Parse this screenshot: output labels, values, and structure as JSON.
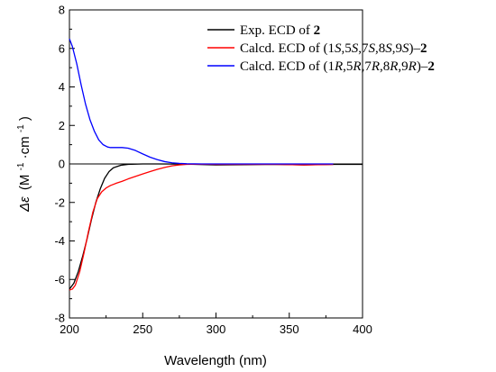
{
  "chart_data": {
    "type": "line",
    "xlabel": "Wavelength (nm)",
    "ylabel": {
      "symbol": "Δε",
      "units_open": "(M",
      "exp1": "-1",
      "dot": "·cm",
      "exp2": "-1",
      "units_close": ")"
    },
    "xlim": [
      200,
      400
    ],
    "ylim": [
      -8,
      8
    ],
    "x_ticks": [
      200,
      250,
      300,
      350,
      400
    ],
    "y_ticks": [
      -8,
      -6,
      -4,
      -2,
      0,
      2,
      4,
      6,
      8
    ],
    "zero_line": true,
    "grid": false,
    "legend_position": "top-right",
    "series": [
      {
        "color": "#000000",
        "legend": [
          {
            "t": "Exp. ECD of ",
            "s": "normal"
          },
          {
            "t": "2",
            "s": "bold"
          }
        ],
        "x": [
          200,
          203,
          206,
          209,
          212,
          215,
          218,
          221,
          224,
          227,
          230,
          235,
          240,
          250,
          260,
          280,
          300,
          320,
          340,
          360,
          380,
          400
        ],
        "y": [
          -6.5,
          -6.2,
          -5.6,
          -4.8,
          -3.9,
          -2.9,
          -2.0,
          -1.3,
          -0.75,
          -0.4,
          -0.2,
          -0.07,
          -0.02,
          0.0,
          0.0,
          -0.01,
          -0.05,
          -0.04,
          -0.02,
          -0.05,
          -0.02,
          -0.02
        ]
      },
      {
        "color": "#ff0000",
        "legend": [
          {
            "t": "Calcd. ECD of (1",
            "s": "normal"
          },
          {
            "t": "S",
            "s": "italic"
          },
          {
            "t": ",5",
            "s": "normal"
          },
          {
            "t": "S",
            "s": "italic"
          },
          {
            "t": ",7",
            "s": "normal"
          },
          {
            "t": "S",
            "s": "italic"
          },
          {
            "t": ",8",
            "s": "normal"
          },
          {
            "t": "S",
            "s": "italic"
          },
          {
            "t": ",9",
            "s": "normal"
          },
          {
            "t": "S",
            "s": "italic"
          },
          {
            "t": ")–",
            "s": "normal"
          },
          {
            "t": "2",
            "s": "bold"
          }
        ],
        "x": [
          200,
          202,
          204,
          207,
          210,
          213,
          216,
          219,
          222,
          225,
          228,
          232,
          236,
          240,
          245,
          250,
          255,
          260,
          265,
          270,
          275,
          280,
          290,
          300,
          320,
          340,
          360,
          380
        ],
        "y": [
          -6.55,
          -6.5,
          -6.3,
          -5.6,
          -4.6,
          -3.5,
          -2.5,
          -1.8,
          -1.45,
          -1.25,
          -1.12,
          -1.0,
          -0.9,
          -0.78,
          -0.65,
          -0.52,
          -0.4,
          -0.28,
          -0.18,
          -0.1,
          -0.05,
          -0.02,
          -0.01,
          -0.02,
          -0.02,
          -0.02,
          -0.05,
          -0.03
        ]
      },
      {
        "color": "#0000ff",
        "legend": [
          {
            "t": "Calcd. ECD of (1",
            "s": "normal"
          },
          {
            "t": "R",
            "s": "italic"
          },
          {
            "t": ",5",
            "s": "normal"
          },
          {
            "t": "R",
            "s": "italic"
          },
          {
            "t": ",7",
            "s": "normal"
          },
          {
            "t": "R",
            "s": "italic"
          },
          {
            "t": ",8",
            "s": "normal"
          },
          {
            "t": "R",
            "s": "italic"
          },
          {
            "t": ",9",
            "s": "normal"
          },
          {
            "t": "R",
            "s": "italic"
          },
          {
            "t": ")–",
            "s": "normal"
          },
          {
            "t": "2",
            "s": "bold"
          }
        ],
        "x": [
          200,
          202,
          205,
          208,
          211,
          214,
          217,
          220,
          223,
          226,
          228,
          232,
          236,
          240,
          245,
          250,
          255,
          260,
          265,
          270,
          275,
          280,
          290,
          300,
          320,
          340,
          360,
          380
        ],
        "y": [
          6.5,
          6.1,
          5.2,
          4.1,
          3.1,
          2.3,
          1.7,
          1.25,
          1.0,
          0.88,
          0.85,
          0.85,
          0.85,
          0.82,
          0.7,
          0.52,
          0.35,
          0.22,
          0.12,
          0.06,
          0.03,
          0.01,
          0.0,
          0.0,
          0.0,
          0.0,
          0.0,
          0.0
        ]
      }
    ]
  }
}
